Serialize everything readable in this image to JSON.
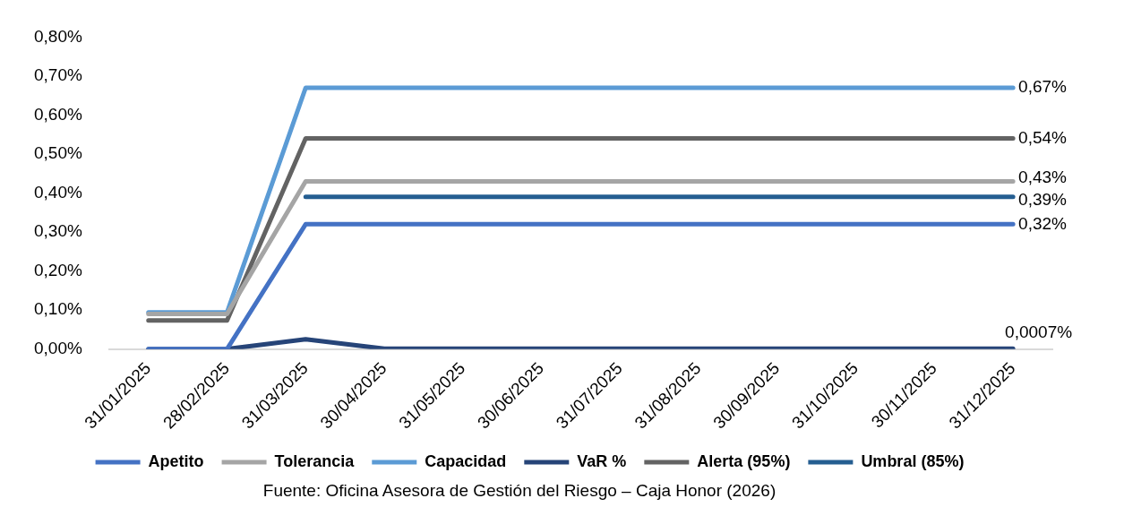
{
  "chart_data": {
    "type": "line",
    "categories": [
      "31/01/2025",
      "28/02/2025",
      "31/03/2025",
      "30/04/2025",
      "31/05/2025",
      "30/06/2025",
      "31/07/2025",
      "31/08/2025",
      "30/09/2025",
      "31/10/2025",
      "30/11/2025",
      "31/12/2025"
    ],
    "series": [
      {
        "name": "Apetito",
        "color": "#4472c4",
        "values": [
          0,
          0,
          0.32,
          0.32,
          0.32,
          0.32,
          0.32,
          0.32,
          0.32,
          0.32,
          0.32,
          0.32
        ],
        "value_labels": [
          null,
          null,
          null,
          null,
          null,
          null,
          null,
          null,
          null,
          null,
          null,
          "0,32%"
        ]
      },
      {
        "name": "Tolerancia",
        "color": "#a5a5a5",
        "values": [
          0.09,
          0.09,
          0.43,
          0.43,
          0.43,
          0.43,
          0.43,
          0.43,
          0.43,
          0.43,
          0.43,
          0.43
        ],
        "value_labels": [
          null,
          null,
          null,
          null,
          null,
          null,
          null,
          null,
          null,
          null,
          null,
          "0,43%"
        ]
      },
      {
        "name": "Capacidad",
        "color": "#5b9bd5",
        "values": [
          0.094,
          0.094,
          0.67,
          0.67,
          0.67,
          0.67,
          0.67,
          0.67,
          0.67,
          0.67,
          0.67,
          0.67
        ],
        "value_labels": [
          null,
          null,
          null,
          null,
          null,
          null,
          null,
          null,
          null,
          null,
          null,
          "0,67%"
        ]
      },
      {
        "name": "VaR %",
        "color": "#264478",
        "values": [
          0,
          0,
          0.025,
          0.0007,
          0.0007,
          0.0007,
          0.0007,
          0.0007,
          0.0007,
          0.0007,
          0.0007,
          0.0007
        ],
        "value_labels": [
          null,
          null,
          null,
          null,
          null,
          null,
          null,
          null,
          null,
          null,
          null,
          "0,0007%"
        ]
      },
      {
        "name": "Alerta (95%)",
        "color": "#636363",
        "values": [
          0.073,
          0.073,
          0.54,
          0.54,
          0.54,
          0.54,
          0.54,
          0.54,
          0.54,
          0.54,
          0.54,
          0.54
        ],
        "value_labels": [
          null,
          null,
          null,
          null,
          null,
          null,
          null,
          null,
          null,
          null,
          null,
          "0,54%"
        ]
      },
      {
        "name": "Umbral (85%)",
        "color": "#255e91",
        "values": [
          null,
          null,
          0.39,
          0.39,
          0.39,
          0.39,
          0.39,
          0.39,
          0.39,
          0.39,
          0.39,
          0.39
        ],
        "value_labels": [
          null,
          null,
          null,
          null,
          null,
          null,
          null,
          null,
          null,
          null,
          null,
          "0,39%"
        ]
      }
    ],
    "ylim": [
      0,
      0.8
    ],
    "yticks": [
      {
        "value": 0,
        "label": "0,00%"
      },
      {
        "value": 0.1,
        "label": "0,10%"
      },
      {
        "value": 0.2,
        "label": "0,20%"
      },
      {
        "value": 0.3,
        "label": "0,30%"
      },
      {
        "value": 0.4,
        "label": "0,40%"
      },
      {
        "value": 0.5,
        "label": "0,50%"
      },
      {
        "value": 0.6,
        "label": "0,60%"
      },
      {
        "value": 0.7,
        "label": "0,70%"
      },
      {
        "value": 0.8,
        "label": "0,80%"
      }
    ],
    "grid": false,
    "legend": "bottom",
    "marker": "none",
    "line_style": "solid",
    "annotations": [
      "Fuente: Oficina Asesora de Gestión del Riesgo – Caja Honor (2026)"
    ]
  }
}
